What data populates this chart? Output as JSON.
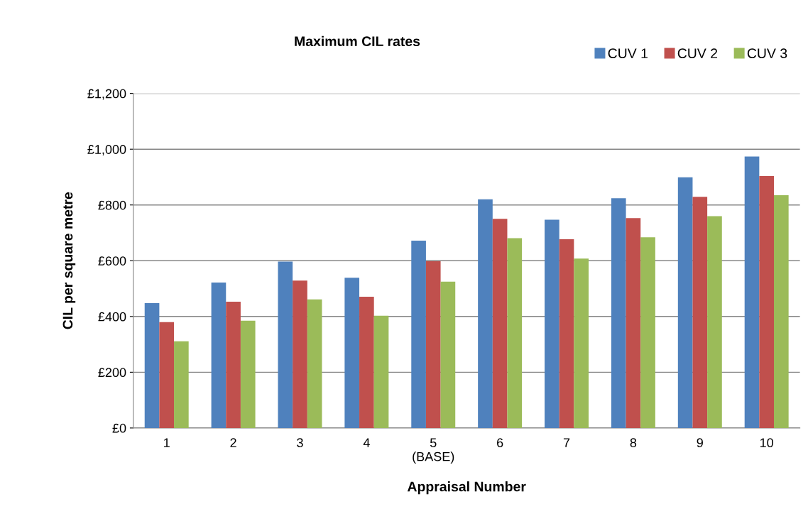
{
  "chart_data": {
    "type": "bar",
    "title": "Maximum CIL rates",
    "xlabel": "Appraisal Number",
    "ylabel": "CIL per square metre",
    "categories": [
      "1",
      "2",
      "3",
      "4",
      "5\n(BASE)",
      "6",
      "7",
      "8",
      "9",
      "10"
    ],
    "series": [
      {
        "name": "CUV 1",
        "color": "#4f81bd",
        "values": [
          448,
          522,
          597,
          539,
          672,
          820,
          747,
          824,
          899,
          974
        ]
      },
      {
        "name": "CUV 2",
        "color": "#c0504d",
        "values": [
          380,
          453,
          529,
          471,
          598,
          750,
          677,
          753,
          829,
          904
        ]
      },
      {
        "name": "CUV 3",
        "color": "#9bbb59",
        "values": [
          311,
          385,
          461,
          403,
          525,
          681,
          608,
          684,
          760,
          835
        ]
      }
    ],
    "ylim": [
      0,
      1200
    ],
    "yticks": [
      {
        "value": 0,
        "label": "£0"
      },
      {
        "value": 200,
        "label": "£200"
      },
      {
        "value": 400,
        "label": "£400"
      },
      {
        "value": 600,
        "label": "£600"
      },
      {
        "value": 800,
        "label": "£800"
      },
      {
        "value": 1000,
        "label": "£1,000"
      },
      {
        "value": 1200,
        "label": "£1,200"
      }
    ],
    "grid": "y",
    "legend": "top right"
  }
}
